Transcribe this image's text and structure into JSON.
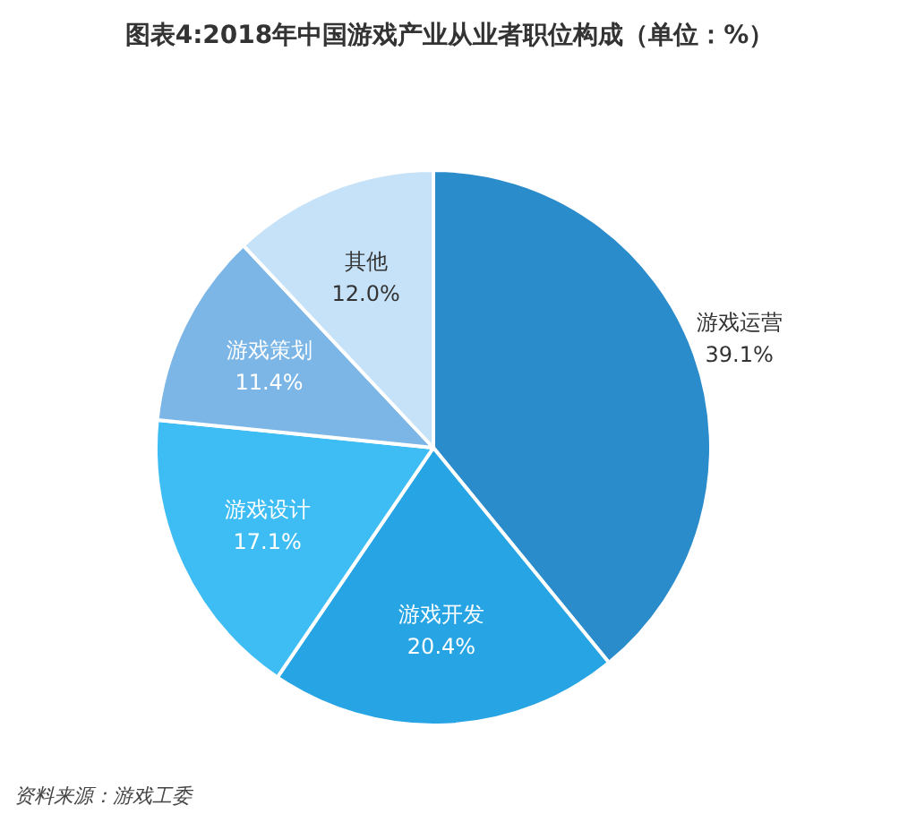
{
  "chart_data": {
    "type": "pie",
    "title": "图表4:2018年中国游戏产业从业者职位构成（单位：%）",
    "categories": [
      "游戏运营",
      "游戏开发",
      "游戏设计",
      "游戏策划",
      "其他"
    ],
    "values": [
      39.1,
      20.4,
      17.1,
      11.4,
      12.0
    ],
    "value_labels": [
      "39.1%",
      "20.4%",
      "17.1%",
      "11.4%",
      "12.0%"
    ],
    "colors": [
      "#2b8ccc",
      "#26a4e4",
      "#3dbdf3",
      "#7cb6e6",
      "#c6e2f8"
    ],
    "legend": false,
    "annotations": [
      "资料来源：游戏工委"
    ]
  }
}
